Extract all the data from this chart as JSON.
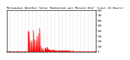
{
  "title": "Milwaukee Weather Solar Radiation per Minute W/m² (Last 24 Hours)",
  "background_color": "#ffffff",
  "plot_bg_color": "#ffffff",
  "line_color": "#ff0000",
  "fill_color": "#ff0000",
  "grid_color": "#b0b0b0",
  "title_fontsize": 3.2,
  "tick_fontsize": 2.5,
  "ylim": [
    0,
    800
  ],
  "xlim": [
    0,
    1440
  ],
  "yticks": [
    0,
    100,
    200,
    300,
    400,
    500,
    600,
    700,
    800
  ],
  "num_points": 1440
}
